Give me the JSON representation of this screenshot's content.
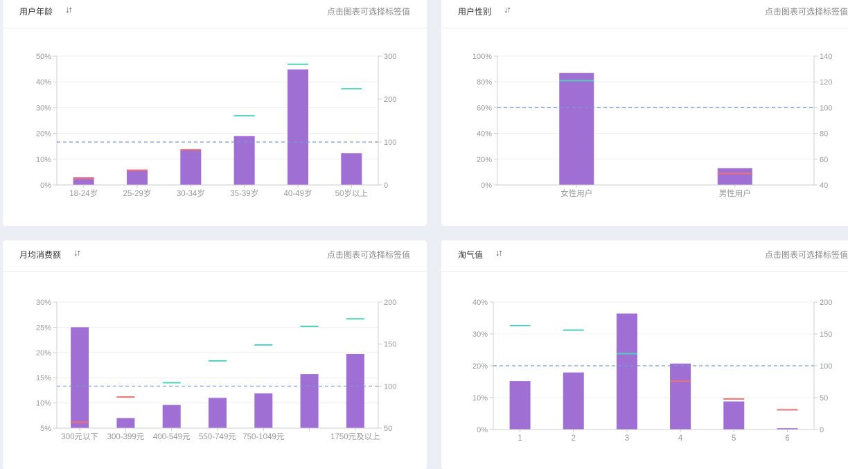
{
  "hint": "点击图表可选择标签值",
  "sort_icon": "sort-icon",
  "colors": {
    "bar": "#9f6fd3",
    "red_marker": "#f07070",
    "green_marker": "#4fd2bd",
    "ref_line": "#7a9cd0",
    "axis_text": "#999999",
    "grid": "#f0f0f0"
  },
  "cards": [
    {
      "title": "用户年龄",
      "chart_data": {
        "type": "bar",
        "categories": [
          "18-24岁",
          "25-29岁",
          "30-34岁",
          "35-39岁",
          "40-49岁",
          "50岁以上"
        ],
        "values": [
          3,
          6,
          13.5,
          19,
          44.8,
          12.3
        ],
        "ylim": [
          0,
          50
        ],
        "yticks": [
          "50%",
          "40%",
          "30%",
          "20%",
          "10%",
          "0%"
        ],
        "y2lim": [
          0,
          300
        ],
        "y2ticks": [
          "300",
          "200",
          "100",
          "0"
        ],
        "reference": 100,
        "markers": [
          {
            "category": "18-24岁",
            "value": 15,
            "color": "red"
          },
          {
            "category": "25-29岁",
            "value": 34,
            "color": "red"
          },
          {
            "category": "30-34岁",
            "value": 82,
            "color": "red"
          },
          {
            "category": "35-39岁",
            "value": 161,
            "color": "green"
          },
          {
            "category": "40-49岁",
            "value": 281,
            "color": "green"
          },
          {
            "category": "50岁以上",
            "value": 224,
            "color": "green"
          }
        ]
      }
    },
    {
      "title": "用户性别",
      "chart_data": {
        "type": "bar",
        "categories": [
          "女性用户",
          "男性用户"
        ],
        "values": [
          87,
          13
        ],
        "ylim": [
          0,
          100
        ],
        "yticks": [
          "100%",
          "80%",
          "60%",
          "40%",
          "20%",
          "0%"
        ],
        "y2lim": [
          40,
          140
        ],
        "y2ticks": [
          "140",
          "120",
          "100",
          "80",
          "60",
          "40"
        ],
        "reference": 100,
        "markers": [
          {
            "category": "女性用户",
            "value": 121,
            "color": "green"
          },
          {
            "category": "男性用户",
            "value": 49,
            "color": "red"
          }
        ]
      }
    },
    {
      "title": "月均消费额",
      "chart_data": {
        "type": "bar",
        "categories": [
          "300元以下",
          "300-399元",
          "400-549元",
          "550-749元",
          "750-1049元",
          "",
          "1750元及以上"
        ],
        "values": [
          25,
          7,
          9.6,
          11,
          11.9,
          15.7,
          19.7
        ],
        "ylim": [
          5,
          30
        ],
        "yticks": [
          "30%",
          "25%",
          "20%",
          "15%",
          "10%",
          "5%"
        ],
        "y2lim": [
          50,
          200
        ],
        "y2ticks": [
          "200",
          "150",
          "100",
          "50"
        ],
        "reference": 100,
        "markers": [
          {
            "category": 0,
            "value": 57,
            "color": "red"
          },
          {
            "category": 1,
            "value": 87,
            "color": "red"
          },
          {
            "category": 2,
            "value": 104,
            "color": "green"
          },
          {
            "category": 3,
            "value": 130,
            "color": "green"
          },
          {
            "category": 4,
            "value": 149,
            "color": "green"
          },
          {
            "category": 5,
            "value": 171,
            "color": "green"
          },
          {
            "category": 6,
            "value": 180,
            "color": "green"
          }
        ]
      }
    },
    {
      "title": "淘气值",
      "chart_data": {
        "type": "bar",
        "categories": [
          "1",
          "2",
          "3",
          "4",
          "5",
          "6"
        ],
        "values": [
          15.2,
          17.9,
          36.4,
          20.7,
          8.8,
          0.4
        ],
        "ylim": [
          0,
          40
        ],
        "yticks": [
          "40%",
          "30%",
          "20%",
          "10%",
          "0%"
        ],
        "y2lim": [
          0,
          200
        ],
        "y2ticks": [
          "200",
          "150",
          "100",
          "50",
          "0"
        ],
        "reference": 100,
        "markers": [
          {
            "category": "1",
            "value": 163,
            "color": "green"
          },
          {
            "category": "2",
            "value": 156,
            "color": "green"
          },
          {
            "category": "3",
            "value": 119,
            "color": "green"
          },
          {
            "category": "4",
            "value": 76,
            "color": "red"
          },
          {
            "category": "5",
            "value": 48,
            "color": "red"
          },
          {
            "category": "6",
            "value": 31,
            "color": "red"
          }
        ]
      }
    }
  ]
}
